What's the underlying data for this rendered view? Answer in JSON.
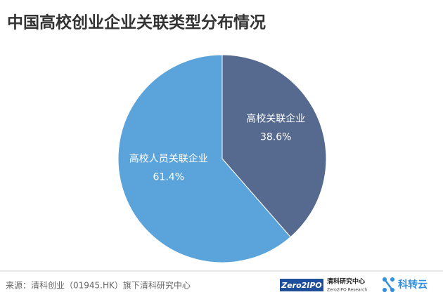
{
  "chart_data": {
    "type": "pie",
    "title": "中国高校创业企业关联类型分布情况",
    "categories": [
      "高校关联企业",
      "高校人员关联企业"
    ],
    "values": [
      38.6,
      61.4
    ],
    "value_labels": [
      "38.6%",
      "61.4%"
    ],
    "colors": [
      "#566a8f",
      "#5ba4db"
    ]
  },
  "footer": {
    "source": "来源：清科创业（01945.HK）旗下清科研究中心",
    "logo_zero2ipo": "Zero2IPO",
    "logo_research_cn": "清科研究中心",
    "logo_research_en": "Zero2IPO Research",
    "logo_kzy": "科转云"
  }
}
